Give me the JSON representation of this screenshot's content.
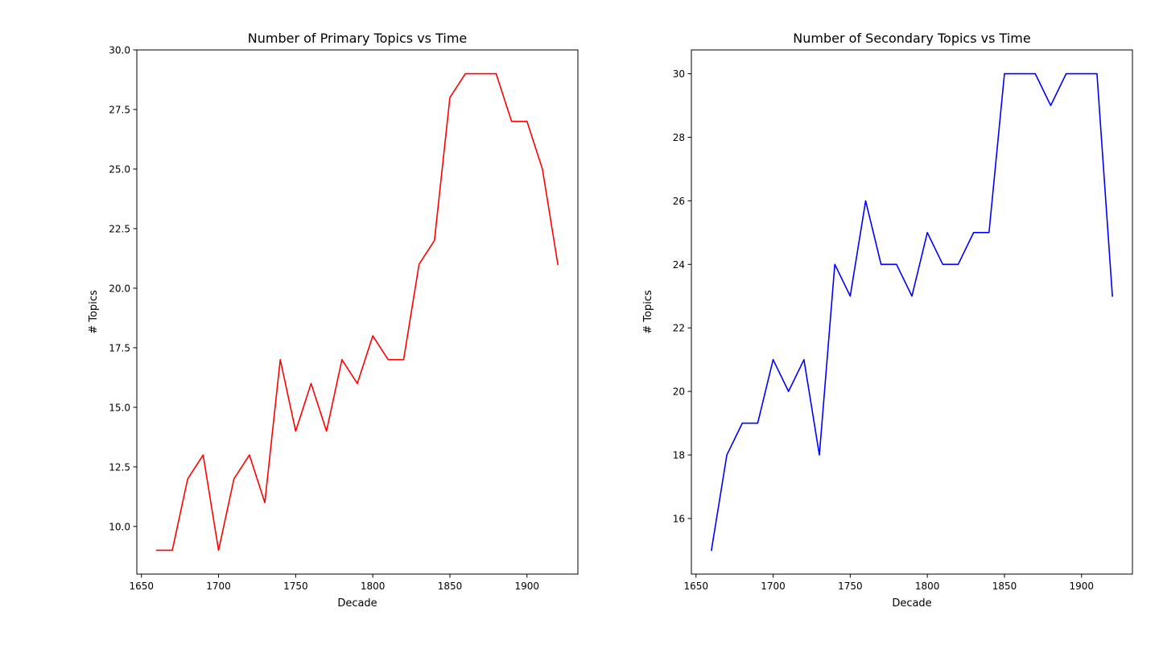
{
  "chart_data": [
    {
      "type": "line",
      "title": "Number of Primary Topics vs Time",
      "xlabel": "Decade",
      "ylabel": "# Topics",
      "xlim": [
        1647,
        1933
      ],
      "ylim": [
        8.0,
        30.0
      ],
      "xticks": [
        1650,
        1700,
        1750,
        1800,
        1850,
        1900
      ],
      "yticks": [
        10.0,
        12.5,
        15.0,
        17.5,
        20.0,
        22.5,
        25.0,
        27.5,
        30.0
      ],
      "ytick_labels": [
        "10.0",
        "12.5",
        "15.0",
        "17.5",
        "20.0",
        "22.5",
        "25.0",
        "27.5",
        "30.0"
      ],
      "grid": false,
      "series": [
        {
          "color": "#ff0000",
          "x": [
            1660,
            1670,
            1680,
            1690,
            1700,
            1710,
            1720,
            1730,
            1740,
            1750,
            1760,
            1770,
            1780,
            1790,
            1800,
            1810,
            1820,
            1830,
            1840,
            1850,
            1860,
            1870,
            1880,
            1890,
            1900,
            1910,
            1920
          ],
          "y": [
            9,
            9,
            12,
            13,
            9,
            12,
            13,
            11,
            17,
            14,
            16,
            14,
            17,
            16,
            18,
            17,
            17,
            21,
            22,
            28,
            29,
            29,
            29,
            27,
            27,
            25,
            21
          ]
        }
      ]
    },
    {
      "type": "line",
      "title": "Number of Secondary Topics vs Time",
      "xlabel": "Decade",
      "ylabel": "# Topics",
      "xlim": [
        1647,
        1933
      ],
      "ylim": [
        14.25,
        30.75
      ],
      "xticks": [
        1650,
        1700,
        1750,
        1800,
        1850,
        1900
      ],
      "yticks": [
        16,
        18,
        20,
        22,
        24,
        26,
        28,
        30
      ],
      "ytick_labels": [
        "16",
        "18",
        "20",
        "22",
        "24",
        "26",
        "28",
        "30"
      ],
      "grid": false,
      "series": [
        {
          "color": "#0000ff",
          "x": [
            1660,
            1670,
            1680,
            1690,
            1700,
            1710,
            1720,
            1730,
            1740,
            1750,
            1760,
            1770,
            1780,
            1790,
            1800,
            1810,
            1820,
            1830,
            1840,
            1850,
            1860,
            1870,
            1880,
            1890,
            1900,
            1910,
            1920
          ],
          "y": [
            15,
            18,
            19,
            19,
            21,
            20,
            21,
            18,
            24,
            23,
            26,
            24,
            24,
            23,
            25,
            24,
            24,
            25,
            25,
            30,
            30,
            30,
            29,
            30,
            30,
            30,
            23
          ]
        }
      ]
    }
  ]
}
